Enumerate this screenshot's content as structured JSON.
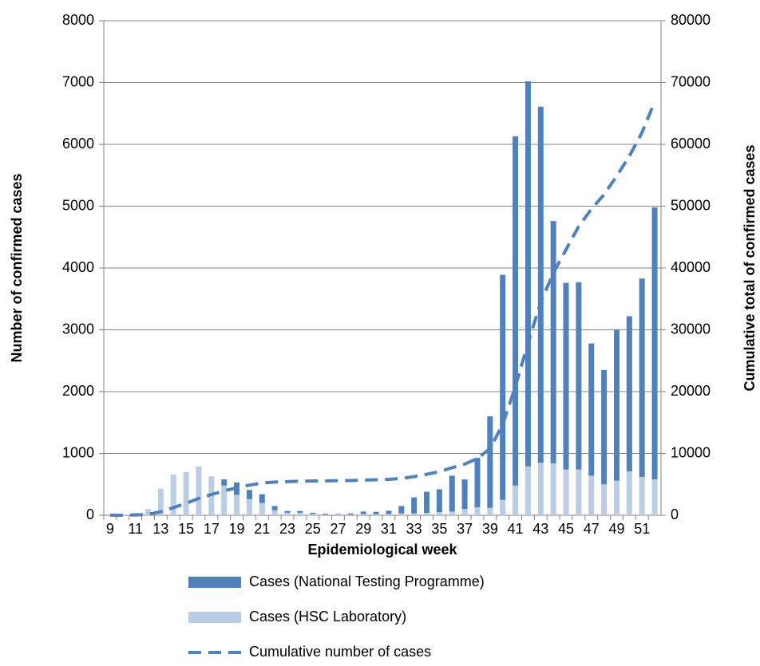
{
  "chart_data": {
    "type": "bar",
    "x_label": "Epidemiological week",
    "y_label": "Number of confirmed cases",
    "y2_label": "Cumulative total of confirmed cases",
    "categories": [
      "9",
      null,
      "11",
      null,
      "13",
      null,
      "15",
      null,
      "17",
      null,
      "19",
      null,
      "21",
      null,
      "23",
      null,
      "25",
      null,
      "27",
      null,
      "29",
      null,
      "31",
      null,
      "33",
      null,
      "35",
      null,
      "37",
      null,
      "39",
      null,
      "41",
      null,
      "43",
      null,
      "45",
      null,
      "47",
      null,
      "49",
      null,
      "51",
      null
    ],
    "series": [
      {
        "name": "Cases (National Testing Programme)",
        "color": "#4f81bd",
        "values": [
          0,
          0,
          0,
          0,
          0,
          0,
          0,
          0,
          0,
          100,
          200,
          150,
          140,
          70,
          30,
          30,
          20,
          15,
          10,
          20,
          40,
          40,
          55,
          120,
          260,
          340,
          370,
          580,
          480,
          800,
          1480,
          3640,
          5650,
          6230,
          5760,
          3920,
          3020,
          3030,
          2140,
          1850,
          2440,
          2510,
          3210,
          4400
        ]
      },
      {
        "name": "Cases (HSC Laboratory)",
        "color": "#b9cde5",
        "values": [
          0,
          5,
          40,
          100,
          430,
          660,
          700,
          790,
          630,
          480,
          330,
          260,
          200,
          80,
          40,
          40,
          20,
          10,
          10,
          10,
          20,
          15,
          20,
          30,
          30,
          40,
          50,
          60,
          100,
          130,
          120,
          250,
          480,
          790,
          850,
          840,
          740,
          740,
          640,
          500,
          560,
          710,
          620,
          580
        ]
      },
      {
        "name": "Cumulative number of cases",
        "color": "#4f81bd",
        "axis": "y2",
        "dashed": true,
        "values": [
          0,
          5,
          45,
          145,
          575,
          1235,
          1935,
          2725,
          3355,
          3935,
          4465,
          4875,
          5215,
          5365,
          5435,
          5505,
          5545,
          5570,
          5590,
          5620,
          5680,
          5735,
          5810,
          5960,
          6250,
          6630,
          7050,
          7690,
          8270,
          9200,
          10800,
          14690,
          20820,
          27840,
          34450,
          39210,
          42970,
          46740,
          49520,
          51870,
          54870,
          58090,
          61920,
          66900
        ]
      }
    ],
    "ylim": [
      0,
      8000
    ],
    "yticks": [
      0,
      1000,
      2000,
      3000,
      4000,
      5000,
      6000,
      7000,
      8000
    ],
    "y2lim": [
      0,
      80000
    ],
    "y2ticks": [
      0,
      10000,
      20000,
      30000,
      40000,
      50000,
      60000,
      70000,
      80000
    ],
    "grid": true,
    "legend": "bottom"
  }
}
